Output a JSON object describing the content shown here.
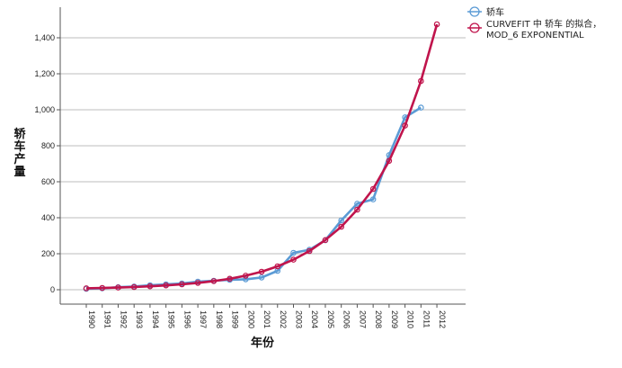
{
  "chart_data": {
    "type": "line",
    "xlabel": "年份",
    "ylabel": "轿车产量",
    "ylim": [
      -80,
      1570
    ],
    "yticks": [
      0,
      200,
      400,
      600,
      800,
      1000,
      1200,
      1400
    ],
    "ytick_labels": [
      "0",
      "200",
      "400",
      "600",
      "800",
      "1,000",
      "1,200",
      "1,400"
    ],
    "grid": "horizontal",
    "legend_position": "top-right",
    "categories": [
      "1990",
      "1991",
      "1992",
      "1993",
      "1994",
      "1995",
      "1996",
      "1997",
      "1998",
      "1999",
      "2000",
      "2001",
      "2002",
      "2003",
      "2004",
      "2005",
      "2006",
      "2007",
      "2008",
      "2009",
      "2010",
      "2011",
      "2012"
    ],
    "series": [
      {
        "name": "轿车",
        "color": "#5B9BD5",
        "marker": "circle-open",
        "values": [
          5,
          8,
          14,
          18,
          25,
          30,
          35,
          45,
          50,
          55,
          58,
          68,
          105,
          205,
          222,
          275,
          385,
          478,
          502,
          748,
          958,
          1012,
          null
        ]
      },
      {
        "name": "CURVEFIT 中 轿车 的拟合，MOD_6 EXPONENTIAL",
        "color": "#C0144C",
        "marker": "circle-open",
        "values": [
          8,
          10,
          12,
          15,
          19,
          24,
          30,
          38,
          48,
          61,
          78,
          100,
          130,
          167,
          215,
          276,
          350,
          445,
          560,
          716,
          912,
          1160,
          1475
        ]
      }
    ]
  },
  "legend": {
    "items": [
      {
        "label": "轿车"
      },
      {
        "label_line1": "CURVEFIT 中 轿车 的拟合，",
        "label_line2": "MOD_6 EXPONENTIAL"
      }
    ]
  }
}
